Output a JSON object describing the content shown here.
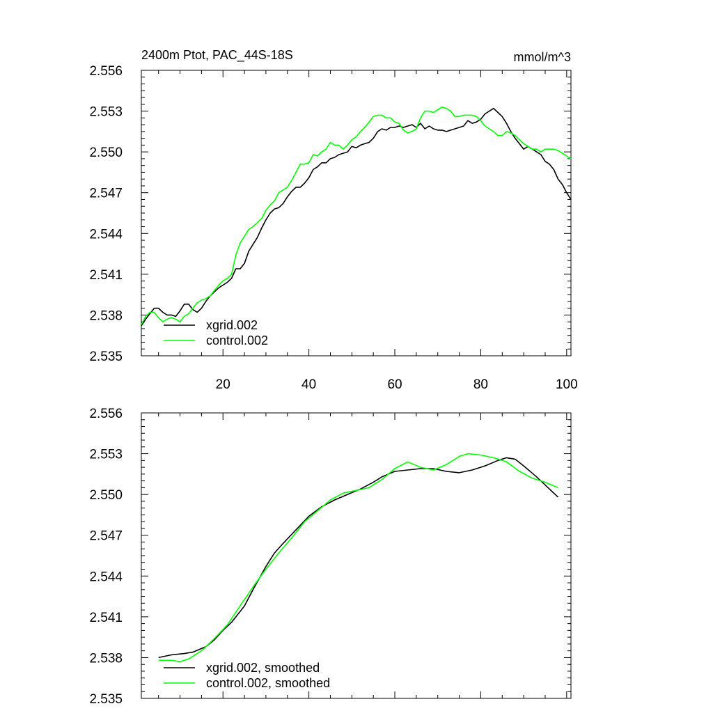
{
  "chart_data": [
    {
      "type": "line",
      "title": "2400m Ptot, PAC_44S-18S",
      "units": "mmol/m^3",
      "xlim": [
        1,
        101
      ],
      "ylim": [
        2.535,
        2.556
      ],
      "xticks": [
        20,
        40,
        60,
        80,
        100
      ],
      "xtick_labels": [
        "20",
        "40",
        "60",
        "80",
        "100"
      ],
      "yticks": [
        2.535,
        2.538,
        2.541,
        2.544,
        2.547,
        2.55,
        2.553,
        2.556
      ],
      "ytick_labels": [
        "2.535",
        "2.538",
        "2.541",
        "2.544",
        "2.547",
        "2.550",
        "2.553",
        "2.556"
      ],
      "legend_position": "bottom-left",
      "series": [
        {
          "name": "xgrid.002",
          "color": "#000000",
          "x": [
            1,
            2,
            3,
            4,
            5,
            6,
            7,
            8,
            9,
            10,
            11,
            12,
            13,
            14,
            15,
            16,
            17,
            18,
            19,
            20,
            21,
            22,
            23,
            24,
            25,
            26,
            27,
            28,
            29,
            30,
            31,
            32,
            33,
            34,
            35,
            36,
            37,
            38,
            39,
            40,
            41,
            42,
            43,
            44,
            45,
            46,
            47,
            48,
            49,
            50,
            51,
            52,
            53,
            54,
            55,
            56,
            57,
            58,
            59,
            60,
            61,
            62,
            63,
            64,
            65,
            66,
            67,
            68,
            69,
            70,
            71,
            72,
            73,
            74,
            75,
            76,
            77,
            78,
            79,
            80,
            81,
            82,
            83,
            84,
            85,
            86,
            87,
            88,
            89,
            90,
            91,
            92,
            93,
            94,
            95,
            96,
            97,
            98,
            99,
            100,
            101
          ],
          "values": [
            2.5372,
            2.5377,
            2.5381,
            2.5385,
            2.5385,
            2.5382,
            2.538,
            2.538,
            2.5379,
            2.5383,
            2.5388,
            2.5388,
            2.5384,
            2.5382,
            2.5385,
            2.539,
            2.5394,
            2.5397,
            2.54,
            2.5402,
            2.5404,
            2.5407,
            2.5414,
            2.5414,
            2.5418,
            2.5427,
            2.5432,
            2.5437,
            2.5444,
            2.545,
            2.5455,
            2.5458,
            2.5459,
            2.5462,
            2.5467,
            2.5471,
            2.5474,
            2.5474,
            2.5477,
            2.5481,
            2.5487,
            2.5489,
            2.5492,
            2.5492,
            2.5495,
            2.5496,
            2.5498,
            2.5499,
            2.55,
            2.5504,
            2.5503,
            2.5505,
            2.5506,
            2.5507,
            2.551,
            2.5515,
            2.5517,
            2.5516,
            2.5518,
            2.5518,
            2.5519,
            2.5518,
            2.5519,
            2.552,
            2.5518,
            2.5521,
            2.5517,
            2.5519,
            2.5517,
            2.5516,
            2.5516,
            2.5515,
            2.5516,
            2.5517,
            2.5518,
            2.5519,
            2.5523,
            2.5521,
            2.5522,
            2.5524,
            2.5528,
            2.553,
            2.5532,
            2.5529,
            2.5526,
            2.5521,
            2.5515,
            2.551,
            2.5506,
            2.5502,
            2.5504,
            2.5502,
            2.55,
            2.5498,
            2.5493,
            2.5491,
            2.5487,
            2.548,
            2.5476,
            2.547,
            2.5465
          ]
        },
        {
          "name": "control.002",
          "color": "#00ff00",
          "x": [
            1,
            2,
            3,
            4,
            5,
            6,
            7,
            8,
            9,
            10,
            11,
            12,
            13,
            14,
            15,
            16,
            17,
            18,
            19,
            20,
            21,
            22,
            23,
            24,
            25,
            26,
            27,
            28,
            29,
            30,
            31,
            32,
            33,
            34,
            35,
            36,
            37,
            38,
            39,
            40,
            41,
            42,
            43,
            44,
            45,
            46,
            47,
            48,
            49,
            50,
            51,
            52,
            53,
            54,
            55,
            56,
            57,
            58,
            59,
            60,
            61,
            62,
            63,
            64,
            65,
            66,
            67,
            68,
            69,
            70,
            71,
            72,
            73,
            74,
            75,
            76,
            77,
            78,
            79,
            80,
            81,
            82,
            83,
            84,
            85,
            86,
            87,
            88,
            89,
            90,
            91,
            92,
            93,
            94,
            95,
            96,
            97,
            98,
            99,
            100,
            101
          ],
          "values": [
            2.5373,
            2.5379,
            2.5382,
            2.5382,
            2.5378,
            2.5375,
            2.5377,
            2.5378,
            2.5377,
            2.5375,
            2.5379,
            2.5381,
            2.5385,
            2.5389,
            2.5391,
            2.5392,
            2.5394,
            2.5398,
            2.5402,
            2.5405,
            2.5407,
            2.541,
            2.5424,
            2.5433,
            2.5438,
            2.5443,
            2.5445,
            2.5448,
            2.5451,
            2.5457,
            2.5461,
            2.5464,
            2.547,
            2.5472,
            2.5474,
            2.5479,
            2.5485,
            2.5491,
            2.5491,
            2.5492,
            2.5498,
            2.5497,
            2.55,
            2.5502,
            2.5507,
            2.5505,
            2.5505,
            2.5502,
            2.5505,
            2.5509,
            2.5511,
            2.5515,
            2.5518,
            2.5522,
            2.5526,
            2.5527,
            2.5527,
            2.5525,
            2.5525,
            2.5522,
            2.5521,
            2.5516,
            2.5514,
            2.5515,
            2.5517,
            2.5525,
            2.553,
            2.553,
            2.5529,
            2.5531,
            2.5533,
            2.5532,
            2.553,
            2.5526,
            2.5526,
            2.5527,
            2.5527,
            2.5527,
            2.5526,
            2.5523,
            2.5519,
            2.5517,
            2.5515,
            2.5512,
            2.5512,
            2.5515,
            2.5514,
            2.5512,
            2.5509,
            2.5506,
            2.5504,
            2.5502,
            2.5502,
            2.55,
            2.5502,
            2.5502,
            2.5502,
            2.5501,
            2.5499,
            2.5497,
            2.5495
          ]
        }
      ]
    },
    {
      "type": "line",
      "title": "",
      "xlim": [
        1,
        101
      ],
      "ylim": [
        2.535,
        2.556
      ],
      "xticks": [
        20,
        40,
        60,
        80,
        100
      ],
      "yticks": [
        2.535,
        2.538,
        2.541,
        2.544,
        2.547,
        2.55,
        2.553,
        2.556
      ],
      "ytick_labels": [
        "2.535",
        "2.538",
        "2.541",
        "2.544",
        "2.547",
        "2.550",
        "2.553",
        "2.556"
      ],
      "legend_position": "bottom-left",
      "series": [
        {
          "name": "xgrid.002, smoothed",
          "color": "#000000",
          "x": [
            5,
            8,
            11,
            13,
            16,
            18,
            20,
            22,
            25,
            27,
            30,
            32,
            34,
            37,
            40,
            43,
            46,
            49,
            52,
            55,
            57,
            60,
            63,
            66,
            69,
            72,
            75,
            78,
            81,
            84,
            86,
            88,
            90,
            93,
            96,
            98
          ],
          "values": [
            2.538,
            2.5382,
            2.5383,
            2.5384,
            2.5388,
            2.5393,
            2.54,
            2.5406,
            2.5418,
            2.543,
            2.5447,
            2.5457,
            2.5464,
            2.5474,
            2.5484,
            2.5491,
            2.5496,
            2.55,
            2.5504,
            2.5509,
            2.5513,
            2.5517,
            2.5518,
            2.5519,
            2.5519,
            2.5517,
            2.5516,
            2.5518,
            2.5521,
            2.5525,
            2.5527,
            2.5526,
            2.5521,
            2.5513,
            2.5504,
            2.5498
          ]
        },
        {
          "name": "control.002, smoothed",
          "color": "#00ff00",
          "x": [
            5,
            8,
            10,
            12,
            15,
            18,
            21,
            24,
            27,
            30,
            33,
            36,
            39,
            42,
            45,
            48,
            51,
            54,
            57,
            60,
            63,
            66,
            69,
            72,
            75,
            77,
            80,
            83,
            86,
            89,
            92,
            95,
            98
          ],
          "values": [
            2.5378,
            2.5378,
            2.5377,
            2.5379,
            2.5385,
            2.5394,
            2.5404,
            2.5418,
            2.5432,
            2.5445,
            2.5457,
            2.5468,
            2.548,
            2.5488,
            2.5496,
            2.5501,
            2.5503,
            2.5505,
            2.5511,
            2.5519,
            2.5524,
            2.552,
            2.5518,
            2.5522,
            2.5528,
            2.553,
            2.5529,
            2.5527,
            2.5524,
            2.5517,
            2.5512,
            2.5509,
            2.5505
          ]
        }
      ]
    }
  ]
}
